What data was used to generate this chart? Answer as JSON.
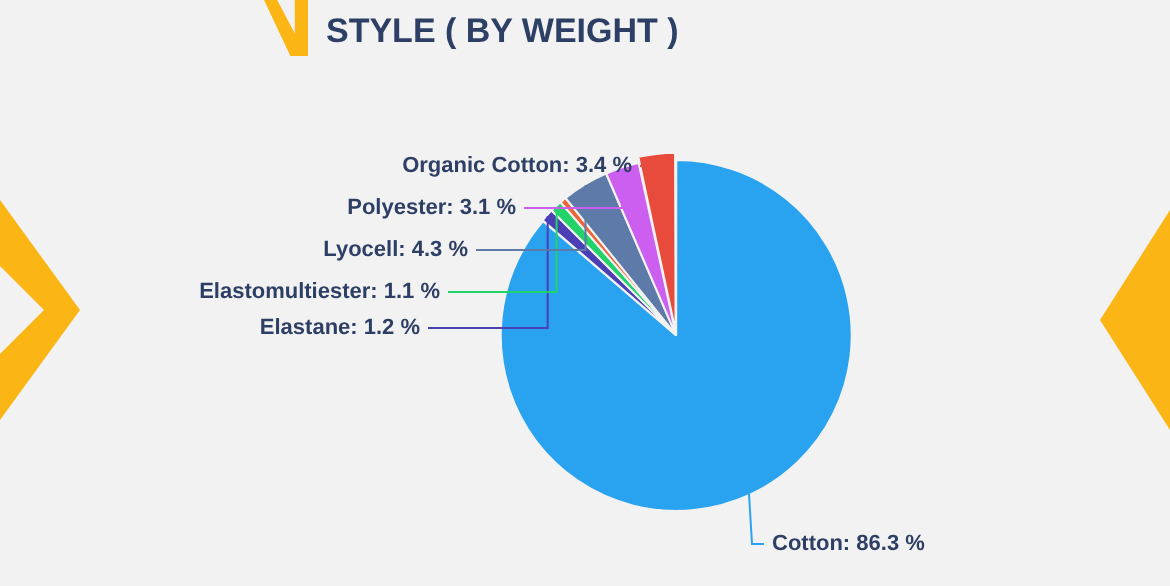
{
  "chart_data": {
    "type": "pie",
    "title": "STYLE ( BY WEIGHT )",
    "categories": [
      "Cotton",
      "Elastane",
      "Elastomultiester",
      null,
      "Lyocell",
      "Polyester",
      "Organic Cotton"
    ],
    "values": [
      86.3,
      1.2,
      1.1,
      0.6,
      4.3,
      3.1,
      3.4
    ],
    "value_labels": [
      "86.3 %",
      "1.2 %",
      "1.1 %",
      null,
      "4.3 %",
      "3.1 %",
      "3.4 %"
    ],
    "colors": [
      "#29a3ef",
      "#4b3fb5",
      "#22d36a",
      "#f0643a",
      "#5e7aa8",
      "#cc5ef0",
      "#e84b3c"
    ],
    "legend": false
  }
}
